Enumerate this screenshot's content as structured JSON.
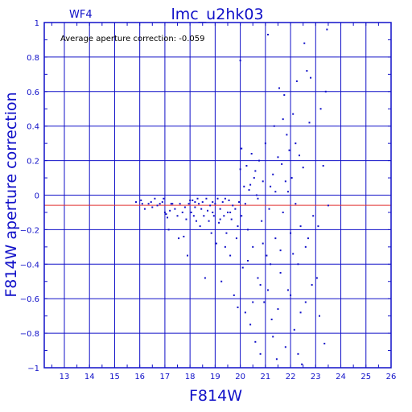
{
  "chart_data": {
    "type": "scatter",
    "panel": "WF4",
    "title": "lmc_u2hk03",
    "annotation": "Average aperture correction: -0.059",
    "xlabel": "F814W",
    "ylabel": "F814W aperture correction",
    "xlim": [
      12.2,
      26
    ],
    "ylim": [
      -1,
      1
    ],
    "xticks": [
      "13",
      "14",
      "15",
      "16",
      "17",
      "18",
      "19",
      "20",
      "21",
      "22",
      "23",
      "24",
      "25",
      "26"
    ],
    "yticks": [
      "1",
      "0.8",
      "0.6",
      "0.4",
      "0.2",
      "0",
      "−0.2",
      "−0.4",
      "−0.6",
      "−0.8",
      "−1"
    ],
    "grid": true,
    "reference_line": -0.059,
    "colors": {
      "axes": "#1010c8",
      "points": "#1010c8",
      "reference_line": "#e03030",
      "background": "#ffffff"
    },
    "points": [
      [
        15.85,
        -0.04
      ],
      [
        16.05,
        -0.03
      ],
      [
        16.1,
        -0.05
      ],
      [
        16.2,
        -0.08
      ],
      [
        16.35,
        -0.05
      ],
      [
        16.45,
        -0.04
      ],
      [
        16.5,
        -0.07
      ],
      [
        16.6,
        -0.02
      ],
      [
        16.7,
        -0.06
      ],
      [
        16.8,
        -0.05
      ],
      [
        16.9,
        -0.04
      ],
      [
        16.95,
        -0.02
      ],
      [
        17.0,
        -0.1
      ],
      [
        17.05,
        -0.11
      ],
      [
        17.1,
        -0.13
      ],
      [
        17.15,
        -0.2
      ],
      [
        17.2,
        -0.09
      ],
      [
        17.25,
        -0.05
      ],
      [
        17.3,
        -0.05
      ],
      [
        17.4,
        -0.08
      ],
      [
        17.5,
        -0.12
      ],
      [
        17.55,
        -0.25
      ],
      [
        17.6,
        -0.05
      ],
      [
        17.7,
        -0.1
      ],
      [
        17.75,
        -0.24
      ],
      [
        17.8,
        -0.07
      ],
      [
        17.85,
        -0.14
      ],
      [
        17.9,
        -0.35
      ],
      [
        17.95,
        -0.05
      ],
      [
        18.0,
        -0.03
      ],
      [
        18.05,
        -0.1
      ],
      [
        18.1,
        -0.03
      ],
      [
        18.15,
        -0.12
      ],
      [
        18.2,
        -0.07
      ],
      [
        18.25,
        -0.15
      ],
      [
        18.3,
        -0.02
      ],
      [
        18.35,
        -0.05
      ],
      [
        18.4,
        -0.18
      ],
      [
        18.45,
        -0.08
      ],
      [
        18.5,
        -0.04
      ],
      [
        18.55,
        -0.12
      ],
      [
        18.6,
        -0.48
      ],
      [
        18.65,
        -0.02
      ],
      [
        18.7,
        -0.09
      ],
      [
        18.75,
        -0.15
      ],
      [
        18.8,
        -0.06
      ],
      [
        18.85,
        -0.22
      ],
      [
        18.9,
        -0.04
      ],
      [
        18.95,
        -0.12
      ],
      [
        19.0,
        -0.05
      ],
      [
        19.05,
        -0.28
      ],
      [
        19.1,
        -0.02
      ],
      [
        19.15,
        -0.16
      ],
      [
        19.2,
        -0.08
      ],
      [
        19.25,
        -0.5
      ],
      [
        19.3,
        -0.04
      ],
      [
        19.35,
        -0.12
      ],
      [
        19.4,
        -0.02
      ],
      [
        19.45,
        -0.22
      ],
      [
        19.5,
        -0.1
      ],
      [
        19.55,
        -0.03
      ],
      [
        19.6,
        -0.35
      ],
      [
        19.65,
        -0.14
      ],
      [
        19.7,
        -0.06
      ],
      [
        19.75,
        -0.58
      ],
      [
        19.8,
        -0.08
      ],
      [
        19.85,
        -0.25
      ],
      [
        19.9,
        -0.65
      ],
      [
        19.95,
        -0.04
      ],
      [
        20.0,
        0.78
      ],
      [
        20.0,
        0.15
      ],
      [
        20.05,
        -0.12
      ],
      [
        20.05,
        0.27
      ],
      [
        20.1,
        -0.42
      ],
      [
        20.15,
        0.05
      ],
      [
        20.2,
        -0.68
      ],
      [
        20.25,
        0.17
      ],
      [
        20.3,
        -0.2
      ],
      [
        20.35,
        0.03
      ],
      [
        20.4,
        -0.75
      ],
      [
        20.45,
        0.24
      ],
      [
        20.5,
        -0.3
      ],
      [
        20.55,
        0.1
      ],
      [
        20.6,
        -0.85
      ],
      [
        20.65,
        0.0
      ],
      [
        20.7,
        -0.48
      ],
      [
        20.75,
        0.2
      ],
      [
        20.8,
        -0.92
      ],
      [
        20.85,
        -0.15
      ],
      [
        20.9,
        0.08
      ],
      [
        20.95,
        -0.62
      ],
      [
        21.0,
        0.3
      ],
      [
        21.05,
        -0.35
      ],
      [
        21.1,
        0.93
      ],
      [
        21.15,
        -0.08
      ],
      [
        21.2,
        0.05
      ],
      [
        21.25,
        -0.72
      ],
      [
        21.3,
        0.12
      ],
      [
        21.35,
        0.4
      ],
      [
        21.4,
        -0.25
      ],
      [
        21.45,
        -0.95
      ],
      [
        21.5,
        0.22
      ],
      [
        21.55,
        0.62
      ],
      [
        21.6,
        -0.45
      ],
      [
        21.65,
        0.18
      ],
      [
        21.7,
        -0.1
      ],
      [
        21.75,
        0.58
      ],
      [
        21.8,
        -0.88
      ],
      [
        21.85,
        0.35
      ],
      [
        21.9,
        -0.55
      ],
      [
        21.95,
        0.26
      ],
      [
        22.0,
        -0.22
      ],
      [
        22.05,
        0.1
      ],
      [
        22.1,
        0.47
      ],
      [
        22.15,
        -0.78
      ],
      [
        22.2,
        -0.05
      ],
      [
        22.25,
        0.66
      ],
      [
        22.3,
        -0.4
      ],
      [
        22.35,
        0.23
      ],
      [
        22.4,
        -0.18
      ],
      [
        22.45,
        -0.98
      ],
      [
        22.5,
        0.16
      ],
      [
        22.55,
        0.88
      ],
      [
        22.6,
        -0.62
      ],
      [
        22.65,
        0.72
      ],
      [
        22.7,
        -0.25
      ],
      [
        22.75,
        0.42
      ],
      [
        22.8,
        0.68
      ],
      [
        22.85,
        -0.52
      ],
      [
        22.9,
        -0.12
      ],
      [
        23.05,
        -0.48
      ],
      [
        23.1,
        -0.18
      ],
      [
        23.15,
        -0.7
      ],
      [
        23.2,
        0.5
      ],
      [
        23.3,
        0.17
      ],
      [
        23.35,
        -0.86
      ],
      [
        23.4,
        0.6
      ],
      [
        23.45,
        0.96
      ],
      [
        23.5,
        -0.06
      ],
      [
        19.6,
        -0.1
      ],
      [
        19.9,
        -0.18
      ],
      [
        20.2,
        -0.05
      ],
      [
        20.4,
        0.06
      ],
      [
        20.7,
        -0.02
      ],
      [
        20.9,
        -0.28
      ],
      [
        21.2,
        -0.4
      ],
      [
        21.4,
        0.02
      ],
      [
        21.6,
        -0.32
      ],
      [
        21.8,
        0.08
      ],
      [
        22.0,
        -0.58
      ],
      [
        22.2,
        0.3
      ],
      [
        22.4,
        -0.68
      ],
      [
        21.1,
        -0.55
      ],
      [
        20.6,
        0.14
      ],
      [
        20.3,
        -0.38
      ],
      [
        19.4,
        -0.3
      ],
      [
        19.2,
        -0.14
      ],
      [
        18.9,
        -0.1
      ],
      [
        18.2,
        -0.04
      ],
      [
        21.7,
        0.44
      ],
      [
        21.9,
        0.02
      ],
      [
        22.1,
        -0.34
      ],
      [
        21.3,
        -0.82
      ],
      [
        20.8,
        -0.52
      ],
      [
        20.5,
        -0.62
      ],
      [
        21.5,
        -0.66
      ],
      [
        22.3,
        -0.92
      ],
      [
        22.6,
        -0.3
      ]
    ]
  }
}
